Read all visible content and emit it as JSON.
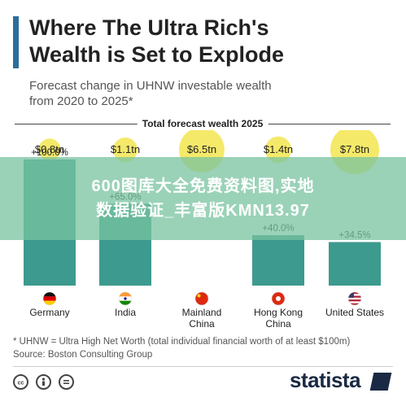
{
  "title": "Where The Ultra Rich's\nWealth is Set to Explode",
  "subtitle": "Forecast change in UHNW investable wealth\nfrom 2020 to 2025*",
  "footnote": "* UHNW = Ultra High Net Worth (total individual financial worth of at least $100m)\nSource: Boston Consulting Group",
  "watermark": "600图库大全免费资料图,实地\n数据验证_丰富版KMN13.97",
  "brand": "statista",
  "icons": [
    "cc-icon",
    "by-icon",
    "equals-icon"
  ],
  "colors": {
    "bar": "#3d9a8e",
    "bubble": "#f5e96a",
    "accent": "#2b6d9c"
  },
  "chart_data": {
    "type": "bar",
    "legend": "Total forecast wealth 2025",
    "categories": [
      "Germany",
      "India",
      "Mainland\nChina",
      "Hong Kong\nChina",
      "United States"
    ],
    "flags": [
      "germany-flag-icon",
      "india-flag-icon",
      "china-flag-icon",
      "hong-kong-flag-icon",
      "united-states-flag-icon"
    ],
    "wealth_labels": [
      "$0.8tn",
      "$1.1tn",
      "$6.5tn",
      "$1.4tn",
      "$7.8tn"
    ],
    "wealth_tn": [
      0.8,
      1.1,
      6.5,
      1.4,
      7.8
    ],
    "growth_labels": [
      "+100.0%",
      "+65.0%",
      "",
      "+40.0%",
      "+34.5%"
    ],
    "growth_pct": [
      100.0,
      65.0,
      null,
      40.0,
      34.5
    ]
  }
}
